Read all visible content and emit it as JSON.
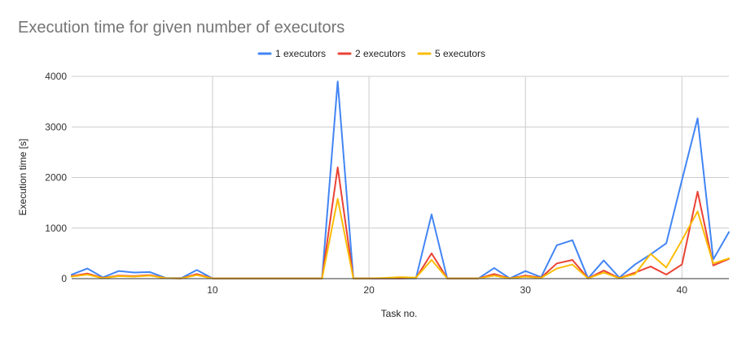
{
  "chart_data": {
    "type": "line",
    "title": "Execution time for given number of executors",
    "xlabel": "Task no.",
    "ylabel": "Execution time [s]",
    "xlim": [
      1,
      43
    ],
    "ylim": [
      0,
      4000
    ],
    "x_ticks": [
      10,
      20,
      30,
      40
    ],
    "y_ticks": [
      0,
      1000,
      2000,
      3000,
      4000
    ],
    "grid": true,
    "legend_position": "top",
    "x": [
      1,
      2,
      3,
      4,
      5,
      6,
      7,
      8,
      9,
      10,
      11,
      12,
      13,
      14,
      15,
      16,
      17,
      18,
      19,
      20,
      21,
      22,
      23,
      24,
      25,
      26,
      27,
      28,
      29,
      30,
      31,
      32,
      33,
      34,
      35,
      36,
      37,
      38,
      39,
      40,
      41,
      42,
      43
    ],
    "series": [
      {
        "name": "1 executors",
        "color": "#4285f4",
        "values": [
          80,
          200,
          25,
          150,
          120,
          130,
          15,
          10,
          170,
          5,
          5,
          5,
          5,
          5,
          5,
          5,
          5,
          3900,
          5,
          5,
          5,
          5,
          5,
          1270,
          5,
          5,
          5,
          210,
          5,
          150,
          30,
          660,
          760,
          5,
          360,
          20,
          280,
          480,
          700,
          1950,
          3170,
          380,
          920
        ]
      },
      {
        "name": "2 executors",
        "color": "#ea4335",
        "values": [
          50,
          100,
          15,
          60,
          50,
          70,
          10,
          5,
          90,
          5,
          5,
          5,
          5,
          5,
          5,
          5,
          5,
          2200,
          5,
          5,
          5,
          5,
          10,
          500,
          5,
          5,
          5,
          90,
          5,
          60,
          20,
          300,
          370,
          5,
          160,
          10,
          120,
          240,
          80,
          280,
          1720,
          260,
          390
        ]
      },
      {
        "name": "5 executors",
        "color": "#fbbc04",
        "values": [
          40,
          80,
          10,
          50,
          40,
          60,
          10,
          5,
          70,
          5,
          5,
          5,
          5,
          5,
          5,
          5,
          5,
          1580,
          5,
          5,
          15,
          30,
          20,
          370,
          5,
          5,
          5,
          60,
          5,
          40,
          15,
          200,
          280,
          5,
          120,
          10,
          90,
          490,
          220,
          760,
          1330,
          300,
          400
        ]
      }
    ]
  }
}
